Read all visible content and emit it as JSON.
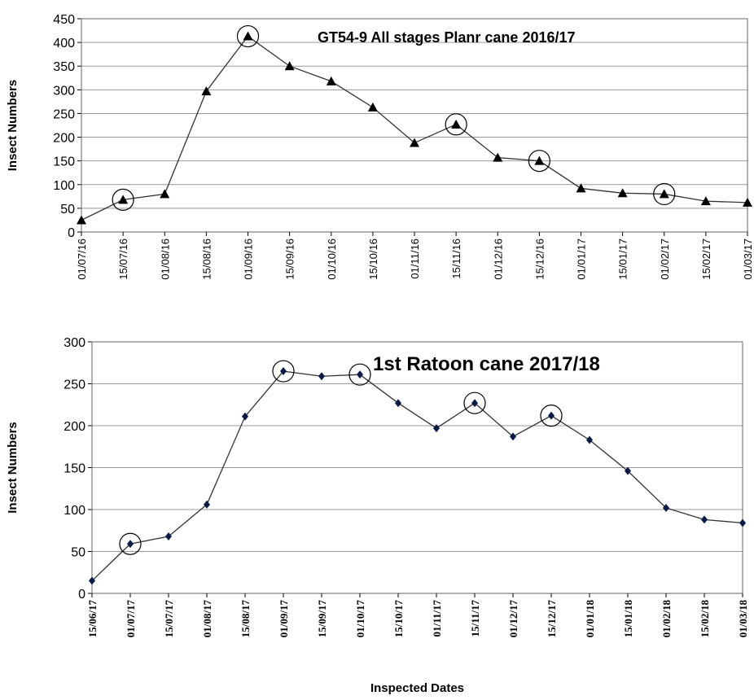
{
  "chart_data": [
    {
      "type": "line",
      "title": "GT54-9 All stages  Planr cane 2016/17",
      "y_label": "Insect Numbers",
      "categories": [
        "01/07/16",
        "15/07/16",
        "01/08/16",
        "15/08/16",
        "01/09/16",
        "15/09/16",
        "01/10/16",
        "15/10/16",
        "01/11/16",
        "15/11/16",
        "01/12/16",
        "15/12/16",
        "01/01/17",
        "15/01/17",
        "01/02/17",
        "15/02/17",
        "01/03/17"
      ],
      "values": [
        25,
        68,
        80,
        297,
        413,
        350,
        318,
        263,
        188,
        227,
        157,
        150,
        92,
        82,
        80,
        65,
        62
      ],
      "color": "#000000",
      "marker": "triangle",
      "circled": [
        1,
        4,
        9,
        11,
        14
      ],
      "ylim": [
        0,
        450
      ],
      "yticks": [
        0,
        50,
        100,
        150,
        200,
        250,
        300,
        350,
        400,
        450
      ],
      "grid": true
    },
    {
      "type": "line",
      "title": "1st Ratoon cane 2017/18",
      "y_label": "Insect Numbers",
      "x_label": "Inspected Dates",
      "categories": [
        "15/06/17",
        "01/07/17",
        "15/07/17",
        "01/08/17",
        "15/08/17",
        "01/09/17",
        "15/09/17",
        "01/10/17",
        "15/10/17",
        "01/11/17",
        "15/11/17",
        "01/12/17",
        "15/12/17",
        "01/01/18",
        "15/01/18",
        "01/02/18",
        "15/02/18",
        "01/03/18"
      ],
      "values": [
        15,
        59,
        68,
        106,
        211,
        265,
        259,
        261,
        227,
        197,
        227,
        187,
        212,
        183,
        146,
        102,
        88,
        84
      ],
      "color": "#0a1a4a",
      "marker": "diamond",
      "circled": [
        1,
        5,
        7,
        10,
        12
      ],
      "ylim": [
        0,
        300
      ],
      "yticks": [
        0,
        50,
        100,
        150,
        200,
        250,
        300
      ],
      "grid": true
    }
  ]
}
